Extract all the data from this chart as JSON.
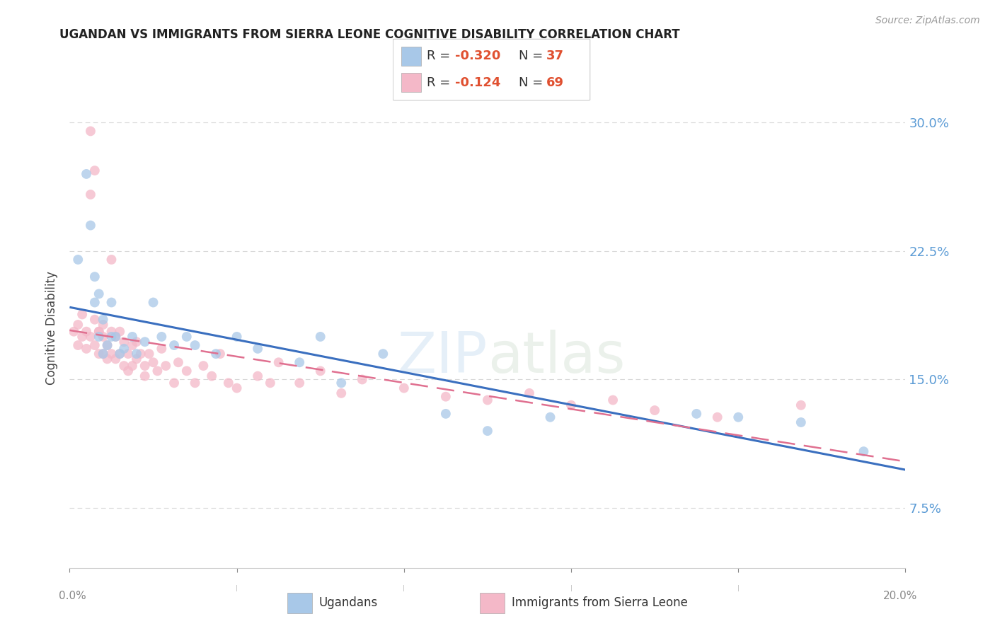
{
  "title": "UGANDAN VS IMMIGRANTS FROM SIERRA LEONE COGNITIVE DISABILITY CORRELATION CHART",
  "source": "Source: ZipAtlas.com",
  "ylabel": "Cognitive Disability",
  "ylabel_tick_vals": [
    0.075,
    0.15,
    0.225,
    0.3
  ],
  "xmin": 0.0,
  "xmax": 0.2,
  "ymin": 0.04,
  "ymax": 0.32,
  "ugandan_R": "-0.320",
  "ugandan_N": "37",
  "sierra_leone_R": "-0.124",
  "sierra_leone_N": "69",
  "ugandan_color": "#a8c8e8",
  "sierra_leone_color": "#f4b8c8",
  "ugandan_line_color": "#3a6fbf",
  "sierra_leone_line_color": "#e07090",
  "watermark": "ZIPatlas",
  "ugandan_x": [
    0.002,
    0.004,
    0.005,
    0.006,
    0.006,
    0.007,
    0.007,
    0.008,
    0.008,
    0.009,
    0.01,
    0.01,
    0.011,
    0.012,
    0.013,
    0.015,
    0.016,
    0.018,
    0.02,
    0.022,
    0.025,
    0.028,
    0.03,
    0.035,
    0.04,
    0.045,
    0.055,
    0.06,
    0.065,
    0.075,
    0.09,
    0.1,
    0.115,
    0.15,
    0.16,
    0.175,
    0.19
  ],
  "ugandan_y": [
    0.22,
    0.27,
    0.24,
    0.21,
    0.195,
    0.2,
    0.175,
    0.185,
    0.165,
    0.17,
    0.175,
    0.195,
    0.175,
    0.165,
    0.168,
    0.175,
    0.165,
    0.172,
    0.195,
    0.175,
    0.17,
    0.175,
    0.17,
    0.165,
    0.175,
    0.168,
    0.16,
    0.175,
    0.148,
    0.165,
    0.13,
    0.12,
    0.128,
    0.13,
    0.128,
    0.125,
    0.108
  ],
  "sierra_leone_x": [
    0.001,
    0.002,
    0.002,
    0.003,
    0.003,
    0.004,
    0.004,
    0.005,
    0.005,
    0.005,
    0.006,
    0.006,
    0.006,
    0.007,
    0.007,
    0.007,
    0.008,
    0.008,
    0.008,
    0.009,
    0.009,
    0.01,
    0.01,
    0.01,
    0.011,
    0.011,
    0.012,
    0.012,
    0.013,
    0.013,
    0.014,
    0.014,
    0.015,
    0.015,
    0.016,
    0.016,
    0.017,
    0.018,
    0.018,
    0.019,
    0.02,
    0.021,
    0.022,
    0.023,
    0.025,
    0.026,
    0.028,
    0.03,
    0.032,
    0.034,
    0.036,
    0.038,
    0.04,
    0.045,
    0.048,
    0.05,
    0.055,
    0.06,
    0.065,
    0.07,
    0.08,
    0.09,
    0.1,
    0.11,
    0.12,
    0.13,
    0.14,
    0.155,
    0.175
  ],
  "sierra_leone_y": [
    0.178,
    0.182,
    0.17,
    0.188,
    0.175,
    0.178,
    0.168,
    0.295,
    0.258,
    0.175,
    0.272,
    0.185,
    0.17,
    0.178,
    0.165,
    0.178,
    0.175,
    0.165,
    0.182,
    0.17,
    0.162,
    0.22,
    0.178,
    0.165,
    0.175,
    0.162,
    0.178,
    0.165,
    0.172,
    0.158,
    0.165,
    0.155,
    0.17,
    0.158,
    0.172,
    0.162,
    0.165,
    0.158,
    0.152,
    0.165,
    0.16,
    0.155,
    0.168,
    0.158,
    0.148,
    0.16,
    0.155,
    0.148,
    0.158,
    0.152,
    0.165,
    0.148,
    0.145,
    0.152,
    0.148,
    0.16,
    0.148,
    0.155,
    0.142,
    0.15,
    0.145,
    0.14,
    0.138,
    0.142,
    0.135,
    0.138,
    0.132,
    0.128,
    0.135
  ],
  "background_color": "#ffffff",
  "grid_color": "#d8d8d8",
  "right_axis_color": "#5b9bd5",
  "title_fontsize": 12,
  "source_fontsize": 10
}
